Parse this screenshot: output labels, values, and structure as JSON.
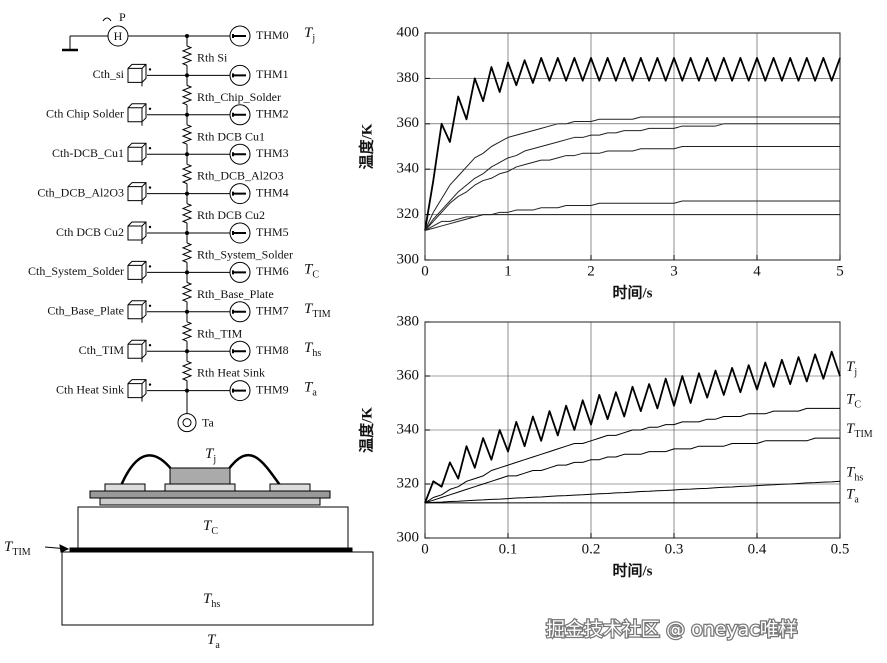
{
  "circuit": {
    "source": {
      "label": "P",
      "symbol": "H"
    },
    "thermometers": [
      {
        "name": "THM0",
        "symbol": "T",
        "sub": "j"
      },
      {
        "name": "THM1"
      },
      {
        "name": "THM2"
      },
      {
        "name": "THM3"
      },
      {
        "name": "THM4"
      },
      {
        "name": "THM5"
      },
      {
        "name": "THM6",
        "symbol": "T",
        "sub": "C"
      },
      {
        "name": "THM7",
        "symbol": "T",
        "sub": "TIM"
      },
      {
        "name": "THM8",
        "symbol": "T",
        "sub": "hs"
      },
      {
        "name": "THM9",
        "symbol": "T",
        "sub": "a"
      }
    ],
    "resistors": [
      "Rth Si",
      "Rth_Chip_Solder",
      "Rth DCB Cu1",
      "Rth_DCB_Al2O3",
      "Rth DCB Cu2",
      "Rth_System_Solder",
      "Rth_Base_Plate",
      "Rth_TIM",
      "Rth Heat Sink"
    ],
    "capacitors": [
      "Cth_si",
      "Cth Chip Solder",
      "Cth-DCB_Cu1",
      "Cth_DCB_Al2O3",
      "Cth DCB Cu2",
      "Cth_System_Solder",
      "Cth_Base_Plate",
      "Cth_TIM",
      "Cth Heat Sink"
    ],
    "ambient": "Ta"
  },
  "cross_section": {
    "labels": [
      {
        "symbol": "T",
        "sub": "j"
      },
      {
        "symbol": "T",
        "sub": "C"
      },
      {
        "symbol": "T",
        "sub": "TIM"
      },
      {
        "symbol": "T",
        "sub": "hs"
      },
      {
        "symbol": "T",
        "sub": "a"
      }
    ]
  },
  "chart_data": [
    {
      "type": "line",
      "x_label": "时间/s",
      "y_label": "温度/K",
      "grid": true,
      "xlim": [
        0,
        5
      ],
      "xticks": [
        0,
        1,
        2,
        3,
        4,
        5
      ],
      "ylim": [
        300,
        400
      ],
      "yticks": [
        300,
        320,
        340,
        360,
        380,
        400
      ],
      "x": [
        0,
        0.1,
        0.2,
        0.3,
        0.4,
        0.5,
        0.6,
        0.7,
        0.8,
        0.9,
        1,
        1.1,
        1.2,
        1.3,
        1.4,
        1.5,
        1.6,
        1.7,
        1.8,
        1.9,
        2,
        2.1,
        2.2,
        2.3,
        2.4,
        2.5,
        2.6,
        2.7,
        2.8,
        2.9,
        3,
        3.1,
        3.2,
        3.3,
        3.4,
        3.5,
        3.6,
        3.7,
        3.8,
        3.9,
        4,
        4.1,
        4.2,
        4.3,
        4.4,
        4.5,
        4.6,
        4.7,
        4.8,
        4.9,
        5
      ],
      "series": [
        {
          "color": "#000000",
          "values": [
            313,
            335,
            360,
            352,
            372,
            362,
            380,
            370,
            385,
            374,
            387,
            377,
            388,
            378,
            389,
            379,
            389,
            379,
            389,
            379,
            389,
            379,
            389,
            379,
            389,
            379,
            389,
            379,
            389,
            379,
            389,
            379,
            389,
            379,
            389,
            379,
            389,
            379,
            389,
            379,
            389,
            379,
            389,
            379,
            389,
            379,
            389,
            379,
            389,
            379,
            389
          ]
        },
        {
          "color": "#222222",
          "values": [
            313,
            321,
            327,
            333,
            337,
            341,
            345,
            347,
            350,
            352,
            354,
            355,
            356,
            357,
            358,
            359,
            360,
            360,
            361,
            361,
            361,
            362,
            362,
            362,
            362,
            362,
            363,
            363,
            363,
            363,
            363,
            363,
            363,
            363,
            363,
            363,
            363,
            363,
            363,
            363,
            363,
            363,
            363,
            363,
            363,
            363,
            363,
            363,
            363,
            363,
            363
          ]
        },
        {
          "color": "#222222",
          "values": [
            313,
            318,
            322,
            326,
            330,
            333,
            336,
            338,
            341,
            343,
            345,
            346,
            348,
            349,
            350,
            351,
            352,
            353,
            354,
            354,
            355,
            355,
            356,
            356,
            357,
            357,
            357,
            358,
            358,
            358,
            358,
            359,
            359,
            359,
            359,
            359,
            360,
            360,
            360,
            360,
            360,
            360,
            360,
            360,
            360,
            360,
            360,
            360,
            360,
            360,
            360
          ]
        },
        {
          "color": "#222222",
          "values": [
            313,
            317,
            321,
            325,
            328,
            330,
            333,
            335,
            336,
            338,
            339,
            341,
            342,
            343,
            344,
            344,
            345,
            346,
            346,
            347,
            347,
            347,
            348,
            348,
            348,
            348,
            349,
            349,
            349,
            349,
            349,
            350,
            350,
            350,
            350,
            350,
            350,
            350,
            350,
            350,
            350,
            350,
            350,
            350,
            350,
            350,
            350,
            350,
            350,
            350,
            350
          ]
        },
        {
          "color": "#222222",
          "values": [
            313,
            314,
            315,
            316,
            317,
            318,
            319,
            320,
            320,
            321,
            321,
            322,
            322,
            322,
            323,
            323,
            323,
            324,
            324,
            324,
            324,
            325,
            325,
            325,
            325,
            325,
            325,
            325,
            325,
            325,
            325,
            326,
            326,
            326,
            326,
            326,
            326,
            326,
            326,
            326,
            326,
            326,
            326,
            326,
            326,
            326,
            326,
            326,
            326,
            326,
            326
          ]
        },
        {
          "color": "#222222",
          "values": [
            313,
            315,
            317,
            317,
            318,
            319,
            319,
            320,
            320,
            320,
            320,
            320,
            320,
            320,
            320,
            320,
            320,
            320,
            320,
            320,
            320,
            320,
            320,
            320,
            320,
            320,
            320,
            320,
            320,
            320,
            320,
            320,
            320,
            320,
            320,
            320,
            320,
            320,
            320,
            320,
            320,
            320,
            320,
            320,
            320,
            320,
            320,
            320,
            320,
            320,
            320
          ]
        }
      ]
    },
    {
      "type": "line",
      "x_label": "时间/s",
      "y_label": "温度/K",
      "grid": true,
      "xlim": [
        0,
        0.5
      ],
      "xticks": [
        0,
        0.1,
        0.2,
        0.3,
        0.4,
        0.5
      ],
      "ylim": [
        300,
        380
      ],
      "yticks": [
        300,
        320,
        340,
        360,
        380
      ],
      "x": [
        0,
        0.01,
        0.02,
        0.03,
        0.04,
        0.05,
        0.06,
        0.07,
        0.08,
        0.09,
        0.1,
        0.11,
        0.12,
        0.13,
        0.14,
        0.15,
        0.16,
        0.17,
        0.18,
        0.19,
        0.2,
        0.21,
        0.22,
        0.23,
        0.24,
        0.25,
        0.26,
        0.27,
        0.28,
        0.29,
        0.3,
        0.31,
        0.32,
        0.33,
        0.34,
        0.35,
        0.36,
        0.37,
        0.38,
        0.39,
        0.4,
        0.41,
        0.42,
        0.43,
        0.44,
        0.45,
        0.46,
        0.47,
        0.48,
        0.49,
        0.5
      ],
      "series": [
        {
          "symbol": "T",
          "sub": "j",
          "color": "#000000",
          "values": [
            313,
            321,
            319,
            328,
            322,
            334,
            326,
            337,
            329,
            340,
            332,
            343,
            334,
            345,
            336,
            347,
            338,
            349,
            340,
            351,
            342,
            353,
            344,
            354,
            345,
            356,
            347,
            357,
            348,
            359,
            349,
            360,
            350,
            361,
            352,
            362,
            353,
            363,
            354,
            364,
            355,
            365,
            356,
            366,
            357,
            367,
            358,
            368,
            359,
            369,
            360
          ]
        },
        {
          "symbol": "T",
          "sub": "C",
          "color": "#000000",
          "values": [
            313,
            315,
            316,
            318,
            319,
            321,
            322,
            323,
            325,
            326,
            327,
            328,
            329,
            330,
            331,
            332,
            333,
            334,
            335,
            335,
            336,
            337,
            338,
            338,
            339,
            340,
            340,
            341,
            341,
            342,
            342,
            343,
            343,
            343,
            344,
            344,
            345,
            345,
            345,
            346,
            346,
            346,
            347,
            347,
            347,
            347,
            348,
            348,
            348,
            348,
            348
          ]
        },
        {
          "symbol": "T",
          "sub": "TIM",
          "color": "#000000",
          "values": [
            313,
            314,
            315,
            316,
            317,
            318,
            319,
            320,
            321,
            322,
            323,
            323,
            324,
            325,
            325,
            326,
            327,
            327,
            328,
            328,
            329,
            329,
            330,
            330,
            331,
            331,
            331,
            332,
            332,
            332,
            333,
            333,
            333,
            334,
            334,
            334,
            334,
            335,
            335,
            335,
            335,
            336,
            336,
            336,
            336,
            336,
            336,
            337,
            337,
            337,
            337
          ]
        },
        {
          "symbol": "T",
          "sub": "hs",
          "color": "#000000",
          "values": [
            313.0,
            313.2,
            313.3,
            313.5,
            313.6,
            313.8,
            314.0,
            314.1,
            314.3,
            314.4,
            314.6,
            314.8,
            314.9,
            315.1,
            315.2,
            315.4,
            315.6,
            315.7,
            315.9,
            316.0,
            316.2,
            316.4,
            316.5,
            316.7,
            316.8,
            317.0,
            317.2,
            317.3,
            317.5,
            317.6,
            317.8,
            318.0,
            318.1,
            318.3,
            318.4,
            318.6,
            318.8,
            318.9,
            319.1,
            319.2,
            319.4,
            319.6,
            319.7,
            319.9,
            320.0,
            320.2,
            320.4,
            320.5,
            320.7,
            320.8,
            321.0
          ]
        },
        {
          "symbol": "T",
          "sub": "a",
          "color": "#000000",
          "values": [
            313,
            313,
            313,
            313,
            313,
            313,
            313,
            313,
            313,
            313,
            313,
            313,
            313,
            313,
            313,
            313,
            313,
            313,
            313,
            313,
            313,
            313,
            313,
            313,
            313,
            313,
            313,
            313,
            313,
            313,
            313,
            313,
            313,
            313,
            313,
            313,
            313,
            313,
            313,
            313,
            313,
            313,
            313,
            313,
            313,
            313,
            313,
            313,
            313,
            313,
            313
          ]
        }
      ]
    }
  ],
  "watermark": "掘金技术社区 @ oneyac唯样"
}
